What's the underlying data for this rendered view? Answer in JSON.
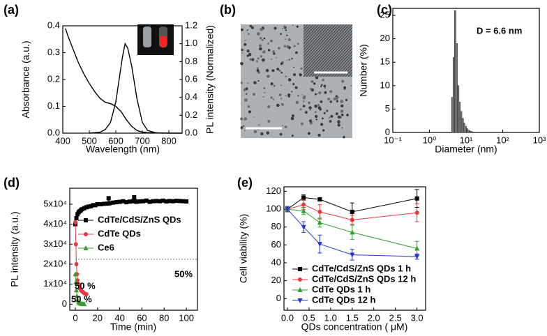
{
  "chart_data": [
    {
      "type": "line",
      "panel_label": "(a)",
      "x_label": "Wavelength (nm)",
      "y_label": "Absorbance (a.u.)",
      "y2_label": "PL intensity (Normalized)",
      "xlim": [
        400,
        850
      ],
      "xticks": [
        400,
        500,
        600,
        700,
        800
      ],
      "ylim": [
        0,
        0.4
      ],
      "yticks": [
        {
          "value": 0,
          "label": "0.0"
        },
        0.1,
        0.2,
        0.3,
        0.4
      ],
      "y2lim": [
        0,
        1.2
      ],
      "y2ticks": [
        {
          "value": 0,
          "label": "0.0"
        },
        0.2,
        0.4,
        0.6,
        0.8,
        {
          "value": 1,
          "label": "1.0"
        },
        1.2
      ],
      "series": [
        {
          "color": "#000000",
          "x": [
            410,
            420,
            440,
            460,
            480,
            500,
            520,
            540,
            560,
            580,
            600,
            620,
            640,
            660,
            680,
            700,
            720,
            750,
            800,
            850
          ],
          "values": [
            0.39,
            0.36,
            0.31,
            0.26,
            0.22,
            0.185,
            0.155,
            0.13,
            0.115,
            0.11,
            0.1,
            0.08,
            0.05,
            0.025,
            0.01,
            0.004,
            0.002,
            0.001,
            0,
            0
          ]
        },
        {
          "color": "#000000",
          "axis": "y2",
          "x": [
            500,
            540,
            560,
            580,
            600,
            615,
            625,
            635,
            645,
            660,
            680,
            700,
            720,
            750,
            780
          ],
          "values": [
            0,
            0.01,
            0.04,
            0.12,
            0.35,
            0.65,
            0.85,
            1.0,
            0.95,
            0.75,
            0.38,
            0.12,
            0.03,
            0.005,
            0
          ]
        }
      ]
    },
    {
      "type": "image",
      "panel_label": "(b)"
    },
    {
      "type": "histogram",
      "panel_label": "(c)",
      "x_label": "Diameter (nm)",
      "y_label": "Number (%)",
      "xscale": "log",
      "color": "#7a7a7a",
      "xlim": [
        0.1,
        1000
      ],
      "xticks": [
        {
          "value": 0.1,
          "label": "10⁻¹"
        },
        {
          "value": 1,
          "label": "10⁰"
        },
        {
          "value": 10,
          "label": "10¹"
        },
        {
          "value": 100,
          "label": "10²"
        },
        {
          "value": 1000,
          "label": "10³"
        }
      ],
      "ylim": [
        0,
        26.5
      ],
      "yticks": [
        0,
        5,
        10,
        15,
        20,
        25
      ],
      "bins": [
        4.0,
        4.4,
        4.8,
        5.3,
        5.8,
        6.4,
        7.0,
        7.7,
        8.5,
        9.3,
        10.2,
        11.2,
        12.3,
        13.5,
        14.9,
        16.4
      ],
      "values": [
        7.5,
        16,
        26,
        19,
        10,
        6.5,
        4.5,
        3,
        2,
        1.3,
        0.8,
        0.5,
        0.3,
        0.2,
        0.1
      ],
      "annotations": [
        {
          "text": "D = 6.6 nm",
          "color": "#000000"
        }
      ]
    },
    {
      "type": "line",
      "panel_label": "(d)",
      "x_label": "Time (min)",
      "y_label": "PL intensity (a.u.)",
      "legend": "upper right",
      "xlim": [
        -5,
        110
      ],
      "xticks": [
        0,
        20,
        40,
        60,
        80,
        100
      ],
      "ylim": [
        -3000,
        58000
      ],
      "yticks": [
        0,
        {
          "value": 10000,
          "label": "1x10⁴"
        },
        {
          "value": 20000,
          "label": "2x10⁴"
        },
        {
          "value": 30000,
          "label": "3x10⁴"
        },
        {
          "value": 40000,
          "label": "4x10⁴"
        },
        {
          "value": 50000,
          "label": "5x10⁴"
        }
      ],
      "hline": 22500,
      "annotations": [
        {
          "text": "50%",
          "color": "#000000"
        },
        {
          "text": "50 %",
          "color": "#e8383d"
        },
        {
          "text": "50 %",
          "color": "#3a9a2f"
        }
      ],
      "series": [
        {
          "name": "CdTe/CdS/ZnS QDs",
          "color": "#000000",
          "marker": "square",
          "x": [
            0,
            1,
            2,
            3,
            4,
            5,
            6,
            8,
            10,
            12,
            14,
            16,
            18,
            20,
            23,
            26,
            29,
            30,
            31,
            34,
            37,
            40,
            43,
            46,
            49,
            52,
            53,
            54,
            55,
            58,
            61,
            64,
            67,
            70,
            73,
            76,
            79,
            82,
            85,
            88,
            91,
            94,
            97,
            100
          ],
          "values": [
            40000,
            43000,
            45000,
            46000,
            46500,
            47000,
            47500,
            48000,
            48500,
            48800,
            49000,
            49500,
            49500,
            50000,
            50000,
            50200,
            50300,
            53000,
            50500,
            50800,
            51000,
            51200,
            51500,
            51000,
            51300,
            51500,
            53500,
            51500,
            51200,
            51400,
            51500,
            51800,
            51200,
            51500,
            51600,
            51500,
            51800,
            51400,
            51600,
            51500,
            51700,
            51600,
            51500,
            51400
          ]
        },
        {
          "name": "CdTe QDs",
          "color": "#e8383d",
          "marker": "circle",
          "x": [
            0,
            0.5,
            1,
            1.5,
            2,
            3,
            4,
            5,
            6,
            7,
            8,
            10
          ],
          "values": [
            41000,
            30000,
            20000,
            15000,
            12000,
            10000,
            8000,
            7000,
            6500,
            6000,
            5500,
            5000
          ]
        },
        {
          "name": "Ce6",
          "color": "#3a9a2f",
          "marker": "triangle",
          "x": [
            0,
            0.5,
            1,
            1.5,
            2,
            3,
            4,
            5,
            6,
            7,
            8
          ],
          "values": [
            15000,
            11000,
            7000,
            4000,
            2000,
            1000,
            500,
            300,
            200,
            100,
            100
          ]
        }
      ]
    },
    {
      "type": "line",
      "panel_label": "(e)",
      "x_label": "QDs concentration ( μM)",
      "y_label": "Cell viability (%)",
      "legend": "lower left",
      "xlim": [
        -0.08,
        3.2
      ],
      "xticks": [
        {
          "value": 0,
          "label": "0.0"
        },
        0.5,
        {
          "value": 1,
          "label": "1.0"
        },
        1.5,
        {
          "value": 2,
          "label": "2.0"
        },
        2.5,
        {
          "value": 3,
          "label": "3.0"
        }
      ],
      "ylim": [
        -13,
        125
      ],
      "yticks": [
        0,
        20,
        40,
        60,
        80,
        100,
        120
      ],
      "series": [
        {
          "name": "CdTe/CdS/ZnS QDs  1 h",
          "color": "#000000",
          "marker": "square",
          "x": [
            0,
            0.375,
            0.75,
            1.5,
            3
          ],
          "values": [
            100,
            113,
            111,
            97,
            112
          ],
          "errors": [
            3,
            3,
            2,
            10,
            10
          ]
        },
        {
          "name": "CdTe/CdS/ZnS QDs  12 h",
          "color": "#e8383d",
          "marker": "circle",
          "x": [
            0,
            0.375,
            0.75,
            1.5,
            3
          ],
          "values": [
            100,
            105,
            97,
            88,
            96
          ],
          "errors": [
            3,
            5,
            8,
            5,
            10
          ]
        },
        {
          "name": "CdTe QDs  1 h",
          "color": "#2ca02c",
          "marker": "triangle",
          "x": [
            0,
            0.375,
            0.75,
            1.5,
            3
          ],
          "values": [
            100,
            98,
            85,
            74,
            56
          ],
          "errors": [
            3,
            4,
            5,
            8,
            8
          ]
        },
        {
          "name": "CdTe QDs  12 h",
          "color": "#2437c9",
          "marker": "triangle-down",
          "x": [
            0,
            0.375,
            0.75,
            1.5,
            3
          ],
          "values": [
            100,
            80,
            61,
            49,
            47
          ],
          "errors": [
            3,
            6,
            10,
            6,
            3
          ]
        }
      ]
    }
  ]
}
